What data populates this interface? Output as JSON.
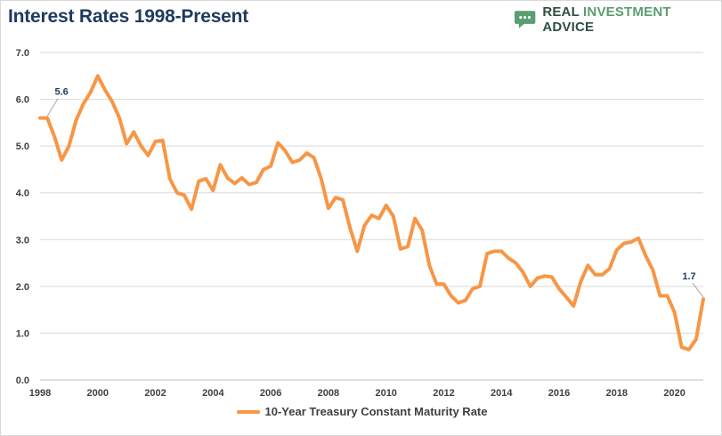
{
  "title": "Interest Rates 1998-Present",
  "brand": {
    "name_part1": "REAL ",
    "name_part2": "INVESTMENT",
    "name_part3": " ADVICE",
    "icon": "speech-bubble-logo-icon",
    "color": "#2d6a4f"
  },
  "colors": {
    "line": "#f79646",
    "grid": "#d9d9d9",
    "axis_text": "#404040"
  },
  "chart_data": {
    "type": "line",
    "title": "Interest Rates 1998-Present",
    "xlabel": "",
    "ylabel": "",
    "xlim": [
      1998,
      2021
    ],
    "ylim": [
      0,
      7
    ],
    "x_ticks": [
      "1998",
      "2000",
      "2002",
      "2004",
      "2006",
      "2008",
      "2010",
      "2012",
      "2014",
      "2016",
      "2018",
      "2020"
    ],
    "y_ticks": [
      "0.0",
      "1.0",
      "2.0",
      "3.0",
      "4.0",
      "5.0",
      "6.0",
      "7.0"
    ],
    "grid": "horizontal",
    "legend_position": "bottom",
    "series": [
      {
        "name": "10-Year Treasury Constant Maturity Rate",
        "x": [
          1998.0,
          1998.25,
          1998.5,
          1998.75,
          1999.0,
          1999.25,
          1999.5,
          1999.75,
          2000.0,
          2000.25,
          2000.5,
          2000.75,
          2001.0,
          2001.25,
          2001.5,
          2001.75,
          2002.0,
          2002.25,
          2002.5,
          2002.75,
          2003.0,
          2003.25,
          2003.5,
          2003.75,
          2004.0,
          2004.25,
          2004.5,
          2004.75,
          2005.0,
          2005.25,
          2005.5,
          2005.75,
          2006.0,
          2006.25,
          2006.5,
          2006.75,
          2007.0,
          2007.25,
          2007.5,
          2007.75,
          2008.0,
          2008.25,
          2008.5,
          2008.75,
          2009.0,
          2009.25,
          2009.5,
          2009.75,
          2010.0,
          2010.25,
          2010.5,
          2010.75,
          2011.0,
          2011.25,
          2011.5,
          2011.75,
          2012.0,
          2012.25,
          2012.5,
          2012.75,
          2013.0,
          2013.25,
          2013.5,
          2013.75,
          2014.0,
          2014.25,
          2014.5,
          2014.75,
          2015.0,
          2015.25,
          2015.5,
          2015.75,
          2016.0,
          2016.25,
          2016.5,
          2016.75,
          2017.0,
          2017.25,
          2017.5,
          2017.75,
          2018.0,
          2018.25,
          2018.5,
          2018.75,
          2019.0,
          2019.25,
          2019.5,
          2019.75,
          2020.0,
          2020.25,
          2020.5,
          2020.75,
          2021.0
        ],
        "y": [
          5.6,
          5.6,
          5.2,
          4.7,
          5.0,
          5.55,
          5.9,
          6.15,
          6.5,
          6.2,
          5.95,
          5.6,
          5.05,
          5.3,
          5.0,
          4.8,
          5.1,
          5.12,
          4.3,
          4.0,
          3.95,
          3.65,
          4.25,
          4.3,
          4.05,
          4.6,
          4.32,
          4.2,
          4.32,
          4.18,
          4.22,
          4.5,
          4.57,
          5.07,
          4.9,
          4.65,
          4.7,
          4.85,
          4.75,
          4.3,
          3.67,
          3.9,
          3.85,
          3.25,
          2.75,
          3.3,
          3.52,
          3.45,
          3.73,
          3.5,
          2.8,
          2.85,
          3.45,
          3.2,
          2.45,
          2.05,
          2.05,
          1.8,
          1.65,
          1.7,
          1.95,
          2.0,
          2.7,
          2.75,
          2.75,
          2.6,
          2.5,
          2.3,
          2.0,
          2.18,
          2.22,
          2.2,
          1.95,
          1.77,
          1.58,
          2.1,
          2.45,
          2.25,
          2.25,
          2.38,
          2.78,
          2.92,
          2.95,
          3.03,
          2.66,
          2.35,
          1.8,
          1.8,
          1.45,
          0.7,
          0.65,
          0.87,
          1.73
        ]
      }
    ],
    "annotations": [
      {
        "label": "5.6",
        "x": 1998.25,
        "y": 5.6
      },
      {
        "label": "1.7",
        "x": 2021.0,
        "y": 1.73
      }
    ]
  }
}
